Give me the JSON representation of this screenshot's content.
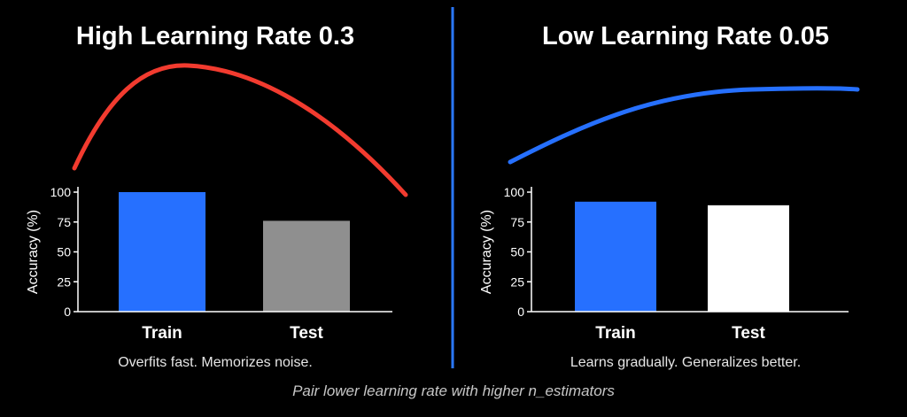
{
  "footer_note": "Pair lower learning rate with higher n_estimators",
  "colors": {
    "background": "#000000",
    "divider": "#2a78ff",
    "axis": "#ffffff",
    "text": "#ffffff",
    "subtext": "#e6e6e6"
  },
  "chart_data": [
    {
      "type": "bar",
      "title": "High Learning Rate 0.3",
      "caption": "Overfits fast. Memorizes noise.",
      "ylabel": "Accuracy (%)",
      "xlabel": "",
      "ylim": [
        0,
        100
      ],
      "yticks": [
        0,
        25,
        50,
        75,
        100
      ],
      "categories": [
        "Train",
        "Test"
      ],
      "values": [
        100,
        76
      ],
      "bar_colors": [
        "#2670ff",
        "#8f8f8f"
      ],
      "trend_curve": {
        "color": "#f23b2f",
        "shape": "rises quickly then falls"
      }
    },
    {
      "type": "bar",
      "title": "Low Learning Rate 0.05",
      "caption": "Learns gradually. Generalizes better.",
      "ylabel": "Accuracy (%)",
      "xlabel": "",
      "ylim": [
        0,
        100
      ],
      "yticks": [
        0,
        25,
        50,
        75,
        100
      ],
      "categories": [
        "Train",
        "Test"
      ],
      "values": [
        92,
        89
      ],
      "bar_colors": [
        "#2670ff",
        "#ffffff"
      ],
      "trend_curve": {
        "color": "#2670ff",
        "shape": "rises gradually then plateaus"
      }
    }
  ]
}
